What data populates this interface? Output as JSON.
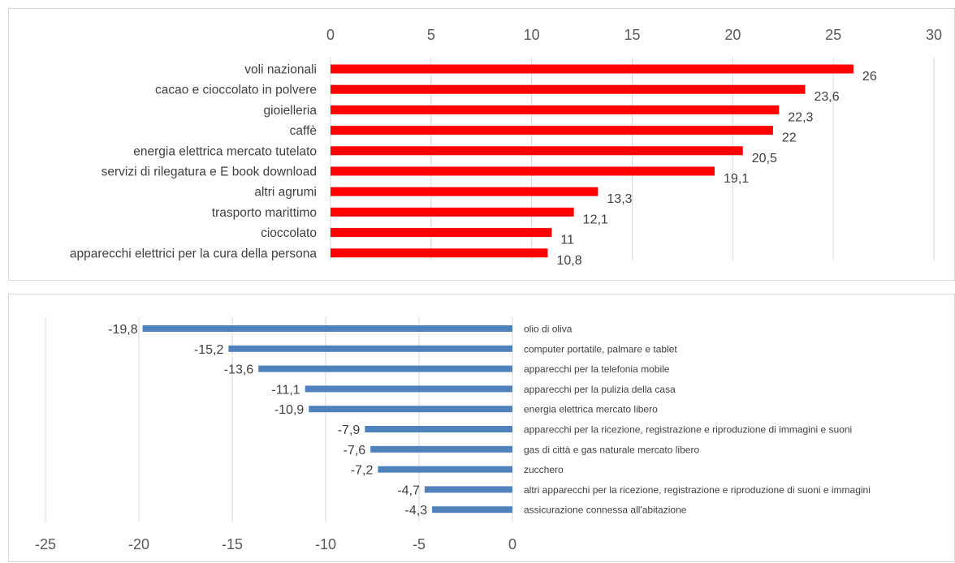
{
  "colors": {
    "positive_bar": "#ff0000",
    "negative_bar": "#4f81bd",
    "grid": "#d9d9d9",
    "text": "#404040"
  },
  "chart_data": [
    {
      "type": "bar",
      "orientation": "horizontal",
      "title": "",
      "xlabel": "",
      "ylabel": "",
      "xlim": [
        0,
        30
      ],
      "x_ticks": [
        "0",
        "5",
        "10",
        "15",
        "20",
        "25",
        "30"
      ],
      "x_tick_values": [
        0,
        5,
        10,
        15,
        20,
        25,
        30
      ],
      "x_axis_position": "top",
      "grid": true,
      "color": "#ff0000",
      "categories": [
        "voli nazionali",
        "cacao e cioccolato in polvere",
        "gioielleria",
        "caffè",
        "energia elettrica mercato tutelato",
        "servizi di rilegatura e E book download",
        "altri agrumi",
        "trasporto marittimo",
        "cioccolato",
        "apparecchi elettrici per la cura della persona"
      ],
      "values": [
        26,
        23.6,
        22.3,
        22,
        20.5,
        19.1,
        13.3,
        12.1,
        11,
        10.8
      ],
      "data_labels": [
        "26",
        "23,6",
        "22,3",
        "22",
        "20,5",
        "19,1",
        "13,3",
        "12,1",
        "11",
        "10,8"
      ]
    },
    {
      "type": "bar",
      "orientation": "horizontal",
      "title": "",
      "xlabel": "",
      "ylabel": "",
      "xlim": [
        -25,
        0
      ],
      "x_ticks": [
        "-25",
        "-20",
        "-15",
        "-10",
        "-5",
        "0"
      ],
      "x_tick_values": [
        -25,
        -20,
        -15,
        -10,
        -5,
        0
      ],
      "x_axis_position": "bottom",
      "grid": true,
      "color": "#4f81bd",
      "categories": [
        "olio di oliva",
        "computer portatile, palmare e tablet",
        "apparecchi per la telefonia mobile",
        "apparecchi per la pulizia della casa",
        "energia elettrica mercato libero",
        "apparecchi per la ricezione, registrazione e riproduzione di immagini e suoni",
        "gas di città  e gas naturale mercato libero",
        "zucchero",
        "altri apparecchi per la ricezione, registrazione e riproduzione di suoni e immagini",
        "assicurazione connessa all'abitazione"
      ],
      "values": [
        -19.8,
        -15.2,
        -13.6,
        -11.1,
        -10.9,
        -7.9,
        -7.6,
        -7.2,
        -4.7,
        -4.3
      ],
      "data_labels": [
        "-19,8",
        "-15,2",
        "-13,6",
        "-11,1",
        "-10,9",
        "-7,9",
        "-7,6",
        "-7,2",
        "-4,7",
        "-4,3"
      ]
    }
  ]
}
